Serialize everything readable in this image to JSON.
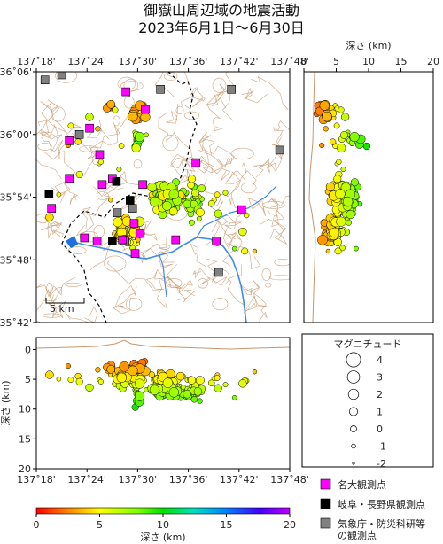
{
  "title_line1": "御嶽山周辺域の地震活動",
  "title_line2": "2023年6月1日～6月30日",
  "map": {
    "lon_ticks": [
      "137˚18'",
      "137˚24'",
      "137˚30'",
      "137˚36'",
      "137˚42'",
      "137˚48'"
    ],
    "lat_ticks": [
      "36˚06'",
      "36˚00'",
      "35˚54'",
      "35˚48'",
      "35˚42'"
    ],
    "scale_label": "5 km"
  },
  "depth_section_right": {
    "axis_title": "深さ (km)",
    "ticks": [
      "0",
      "5",
      "10",
      "15",
      "20"
    ]
  },
  "depth_section_bottom": {
    "axis_title": "深さ (km)",
    "depth_ticks": [
      "0",
      "5",
      "10",
      "15",
      "20"
    ],
    "lon_ticks": [
      "137˚18'",
      "137˚24'",
      "137˚30'",
      "137˚36'",
      "137˚42'",
      "137˚48'"
    ]
  },
  "magnitude_legend": {
    "title": "マグニチュード",
    "items": [
      {
        "label": "4",
        "m": 4
      },
      {
        "label": "3",
        "m": 3
      },
      {
        "label": "2",
        "m": 2
      },
      {
        "label": "1",
        "m": 1
      },
      {
        "label": "0",
        "m": 0
      },
      {
        "label": "-1",
        "m": -1
      },
      {
        "label": "-2",
        "m": -2
      }
    ]
  },
  "station_legend": [
    {
      "label": "名大観測点",
      "color": "#ff00ff"
    },
    {
      "label": "岐阜・長野県観測点",
      "color": "#000000"
    },
    {
      "label": "気象庁・防災科研等",
      "label2": "の観測点",
      "color": "#808080"
    }
  ],
  "colorbar": {
    "ticks": [
      "0",
      "5",
      "10",
      "15",
      "20"
    ],
    "label": "深さ (km)"
  }
}
